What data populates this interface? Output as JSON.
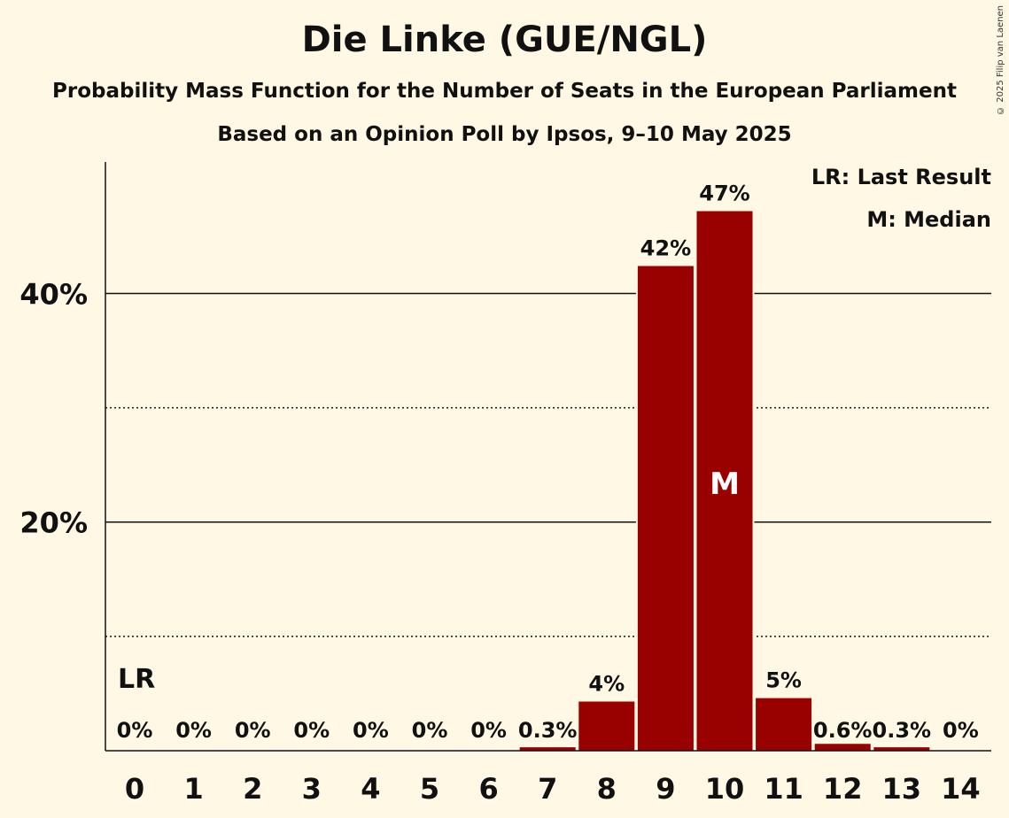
{
  "copyright": "© 2025 Filip van Laenen",
  "legend": {
    "last_result": "LR: Last Result",
    "median": "M: Median"
  },
  "colors": {
    "bar": "#990000",
    "background": "#fff8e4"
  },
  "chart_data": {
    "type": "bar",
    "title": "Die Linke (GUE/NGL)",
    "subtitle": "Probability Mass Function for the Number of Seats in the European Parliament",
    "subtitle2": "Based on an Opinion Poll by Ipsos, 9–10 May 2025",
    "xlabel": "",
    "ylabel": "",
    "categories": [
      "0",
      "1",
      "2",
      "3",
      "4",
      "5",
      "6",
      "7",
      "8",
      "9",
      "10",
      "11",
      "12",
      "13",
      "14"
    ],
    "values": [
      0,
      0,
      0,
      0,
      0,
      0,
      0,
      0.3,
      4.3,
      42.4,
      47.2,
      4.6,
      0.6,
      0.3,
      0
    ],
    "value_labels": [
      "0%",
      "0%",
      "0%",
      "0%",
      "0%",
      "0%",
      "0%",
      "0.3%",
      "4%",
      "42%",
      "47%",
      "5%",
      "0.6%",
      "0.3%",
      "0%"
    ],
    "ylim": [
      0,
      51.5
    ],
    "y_ticks": [
      {
        "value": 20,
        "label": "20%"
      },
      {
        "value": 40,
        "label": "40%"
      }
    ],
    "minor_gridlines": [
      10,
      30
    ],
    "last_result_category": "0",
    "last_result_label": "LR",
    "median_category": "10",
    "median_label": "M",
    "legend_position": "top-right"
  }
}
